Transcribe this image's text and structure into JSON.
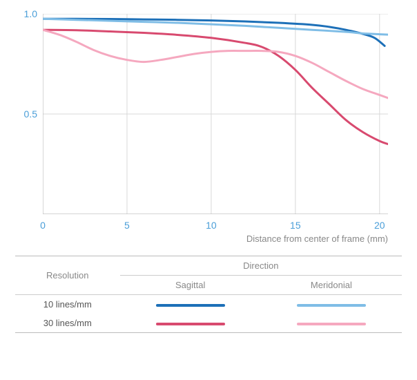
{
  "chart": {
    "type": "line",
    "xlim": [
      0,
      20.5
    ],
    "ylim": [
      0,
      1.0
    ],
    "xticks": [
      0,
      5,
      10,
      15,
      20
    ],
    "yticks": [
      0.5,
      1.0
    ],
    "xtick_labels": [
      "0",
      "5",
      "10",
      "15",
      "20"
    ],
    "ytick_labels": [
      "0.5",
      "1.0"
    ],
    "xlabel": "Distance from center of frame (mm)",
    "tick_color": "#4a9ed8",
    "label_color": "#888888",
    "grid_color": "#d8d8d8",
    "axis_color": "#bcbcbc",
    "background": "#ffffff",
    "label_fontsize": 13,
    "tick_fontsize": 14,
    "line_width": 3,
    "series": [
      {
        "id": "10lpmm_sagittal",
        "color": "#1d70b8",
        "points": [
          [
            0,
            0.975
          ],
          [
            2,
            0.975
          ],
          [
            4,
            0.974
          ],
          [
            6,
            0.972
          ],
          [
            8,
            0.97
          ],
          [
            10,
            0.967
          ],
          [
            12,
            0.962
          ],
          [
            14,
            0.955
          ],
          [
            16,
            0.945
          ],
          [
            17,
            0.935
          ],
          [
            18,
            0.92
          ],
          [
            19,
            0.9
          ],
          [
            19.7,
            0.88
          ],
          [
            20.3,
            0.84
          ]
        ]
      },
      {
        "id": "10lpmm_meridional",
        "color": "#7fbde6",
        "points": [
          [
            0,
            0.975
          ],
          [
            2,
            0.97
          ],
          [
            4,
            0.965
          ],
          [
            6,
            0.96
          ],
          [
            8,
            0.955
          ],
          [
            10,
            0.948
          ],
          [
            12,
            0.94
          ],
          [
            14,
            0.93
          ],
          [
            16,
            0.92
          ],
          [
            18,
            0.91
          ],
          [
            19,
            0.902
          ],
          [
            20,
            0.898
          ],
          [
            20.5,
            0.896
          ]
        ]
      },
      {
        "id": "30lpmm_sagittal",
        "color": "#d84a6f",
        "points": [
          [
            0,
            0.92
          ],
          [
            2,
            0.918
          ],
          [
            4,
            0.912
          ],
          [
            6,
            0.905
          ],
          [
            8,
            0.895
          ],
          [
            10,
            0.88
          ],
          [
            12,
            0.855
          ],
          [
            13,
            0.835
          ],
          [
            14,
            0.79
          ],
          [
            15,
            0.72
          ],
          [
            16,
            0.63
          ],
          [
            17,
            0.55
          ],
          [
            18,
            0.47
          ],
          [
            19,
            0.41
          ],
          [
            20,
            0.365
          ],
          [
            20.5,
            0.35
          ]
        ]
      },
      {
        "id": "30lpmm_meridional",
        "color": "#f5a8bf",
        "points": [
          [
            0,
            0.92
          ],
          [
            1,
            0.895
          ],
          [
            2,
            0.86
          ],
          [
            3,
            0.82
          ],
          [
            4,
            0.79
          ],
          [
            5,
            0.77
          ],
          [
            6,
            0.76
          ],
          [
            7,
            0.77
          ],
          [
            8,
            0.785
          ],
          [
            9,
            0.8
          ],
          [
            10,
            0.81
          ],
          [
            11,
            0.815
          ],
          [
            12,
            0.815
          ],
          [
            13,
            0.815
          ],
          [
            14,
            0.81
          ],
          [
            15,
            0.79
          ],
          [
            16,
            0.755
          ],
          [
            17,
            0.71
          ],
          [
            18,
            0.665
          ],
          [
            19,
            0.625
          ],
          [
            20,
            0.595
          ],
          [
            20.5,
            0.58
          ]
        ]
      }
    ]
  },
  "legend": {
    "resolution_header": "Resolution",
    "direction_header": "Direction",
    "sagittal_header": "Sagittal",
    "meridional_header": "Meridonial",
    "header_color": "#888888",
    "row_label_color": "#555555",
    "rows": [
      {
        "label": "10 lines/mm",
        "sagittal_color": "#1d70b8",
        "meridional_color": "#7fbde6"
      },
      {
        "label": "30 lines/mm",
        "sagittal_color": "#d84a6f",
        "meridional_color": "#f5a8bf"
      }
    ]
  }
}
